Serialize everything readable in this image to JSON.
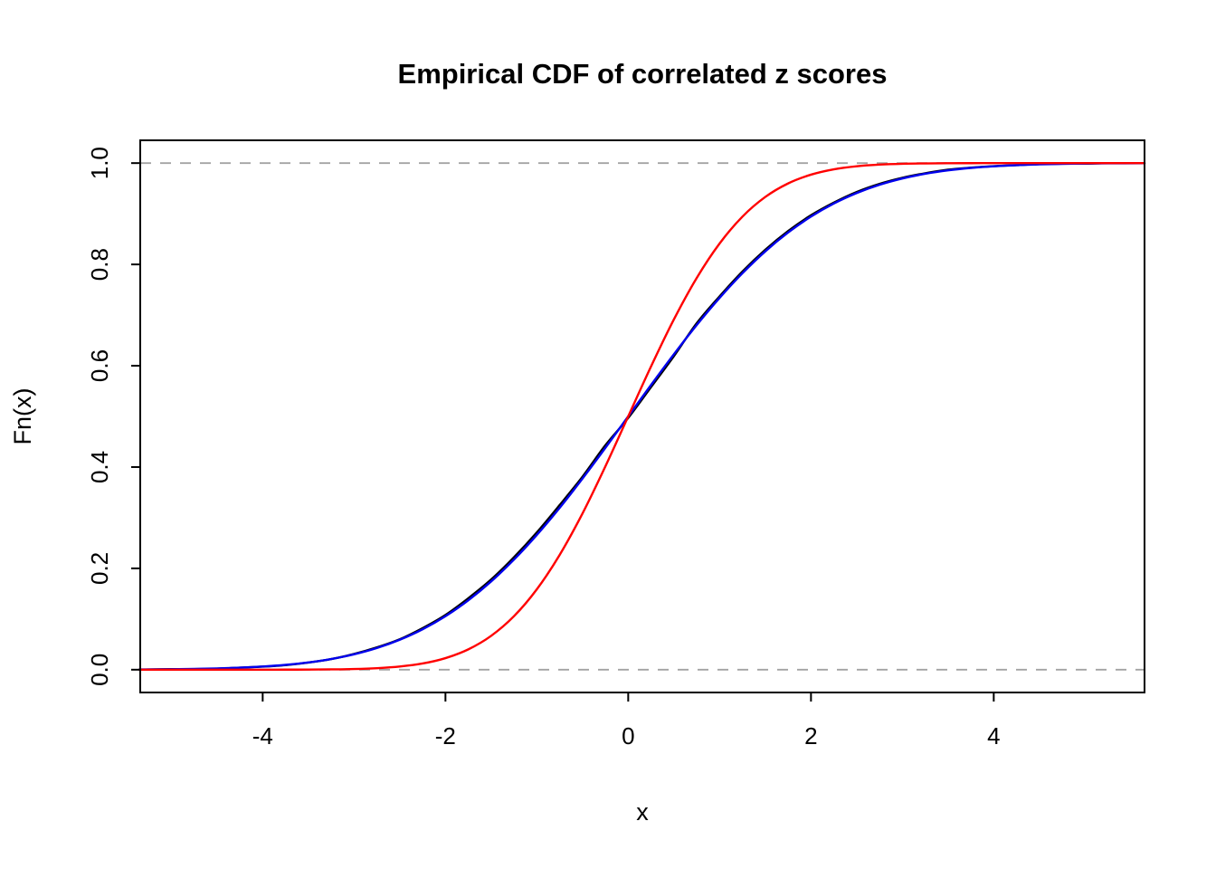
{
  "chart_data": {
    "type": "line",
    "title": "Empirical CDF of correlated z scores",
    "xlabel": "x",
    "ylabel": "Fn(x)",
    "xlim": [
      -5.34,
      5.65
    ],
    "ylim": [
      -0.045,
      1.045
    ],
    "x_ticks": [
      -4,
      -2,
      0,
      2,
      4
    ],
    "x_tick_labels": [
      "-4",
      "-2",
      "0",
      "2",
      "4"
    ],
    "y_ticks": [
      0.0,
      0.2,
      0.4,
      0.6,
      0.8,
      1.0
    ],
    "y_tick_labels": [
      "0.0",
      "0.2",
      "0.4",
      "0.6",
      "0.8",
      "1.0"
    ],
    "grid": false,
    "legend": "none",
    "box_color": "#000000",
    "reference_lines": {
      "y": [
        0,
        1
      ],
      "style": "dashed",
      "color": "#a3a3a3"
    },
    "x": [
      -5.35,
      -5,
      -4.75,
      -4.5,
      -4.25,
      -4,
      -3.75,
      -3.5,
      -3.25,
      -3,
      -2.75,
      -2.5,
      -2.25,
      -2,
      -1.75,
      -1.5,
      -1.25,
      -1,
      -0.75,
      -0.5,
      -0.25,
      0,
      0.25,
      0.5,
      0.75,
      1,
      1.25,
      1.5,
      1.75,
      2,
      2.25,
      2.5,
      2.75,
      3,
      3.25,
      3.5,
      3.75,
      4,
      4.25,
      4.5,
      4.75,
      5,
      5.25,
      5.65
    ],
    "series": [
      {
        "name": "empirical-cdf",
        "color": "#000000",
        "width": 2.4,
        "values": [
          0,
          0.001,
          0.001,
          0.002,
          0.004,
          0.006,
          0.009,
          0.014,
          0.021,
          0.031,
          0.044,
          0.06,
          0.082,
          0.108,
          0.141,
          0.178,
          0.222,
          0.271,
          0.325,
          0.381,
          0.443,
          0.497,
          0.558,
          0.619,
          0.684,
          0.737,
          0.786,
          0.829,
          0.866,
          0.897,
          0.922,
          0.943,
          0.959,
          0.971,
          0.98,
          0.987,
          0.991,
          0.994,
          0.996,
          0.998,
          0.999,
          0.999,
          1,
          1
        ]
      },
      {
        "name": "fitted-normal-cdf-wide",
        "color": "#0000ee",
        "width": 2.4,
        "values": [
          0.0004,
          0.0009,
          0.0015,
          0.0025,
          0.004,
          0.0062,
          0.0095,
          0.0143,
          0.0211,
          0.0304,
          0.0428,
          0.0591,
          0.0798,
          0.1056,
          0.137,
          0.1742,
          0.2173,
          0.266,
          0.3195,
          0.3773,
          0.4379,
          0.5,
          0.5621,
          0.6227,
          0.6805,
          0.734,
          0.7827,
          0.8258,
          0.863,
          0.8944,
          0.9202,
          0.9409,
          0.9572,
          0.9696,
          0.9789,
          0.9857,
          0.9905,
          0.9938,
          0.996,
          0.9975,
          0.9985,
          0.9991,
          0.9995,
          0.9997
        ]
      },
      {
        "name": "standard-normal-cdf",
        "color": "#ff0000",
        "width": 2.4,
        "values": [
          0,
          0,
          0,
          0,
          0,
          0,
          0.0001,
          0.0002,
          0.0006,
          0.0013,
          0.003,
          0.0062,
          0.0122,
          0.0228,
          0.0401,
          0.0668,
          0.1056,
          0.1587,
          0.2266,
          0.3085,
          0.4013,
          0.5,
          0.5987,
          0.6915,
          0.7734,
          0.8413,
          0.8944,
          0.9332,
          0.9599,
          0.9772,
          0.9878,
          0.9938,
          0.997,
          0.9987,
          0.9994,
          0.9998,
          0.9999,
          1,
          1,
          1,
          1,
          1,
          1,
          1
        ]
      }
    ]
  }
}
